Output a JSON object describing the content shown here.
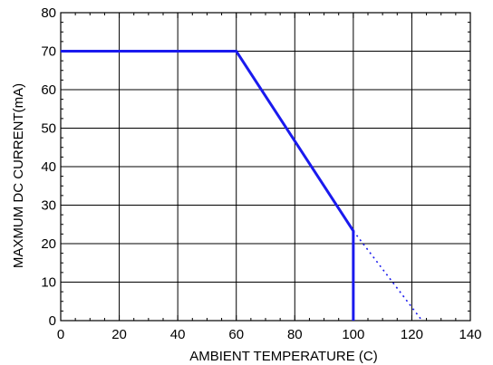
{
  "chart_data": {
    "type": "line",
    "xlabel": "AMBIENT TEMPERATURE (C)",
    "ylabel": "MAXMUM DC CURRENT(mA)",
    "xlim": [
      0,
      140
    ],
    "ylim": [
      0,
      80
    ],
    "x_ticks": [
      0,
      20,
      40,
      60,
      80,
      100,
      120,
      140
    ],
    "y_ticks": [
      0,
      10,
      20,
      30,
      40,
      50,
      60,
      70,
      80
    ],
    "grid": true,
    "series": [
      {
        "style": "solid",
        "color": "#1a1aee",
        "x": [
          0,
          60,
          100,
          100
        ],
        "y": [
          70,
          70,
          23.3,
          0
        ]
      },
      {
        "style": "dotted",
        "color": "#1a1aee",
        "x": [
          100,
          123.5
        ],
        "y": [
          23.3,
          0
        ]
      }
    ]
  }
}
